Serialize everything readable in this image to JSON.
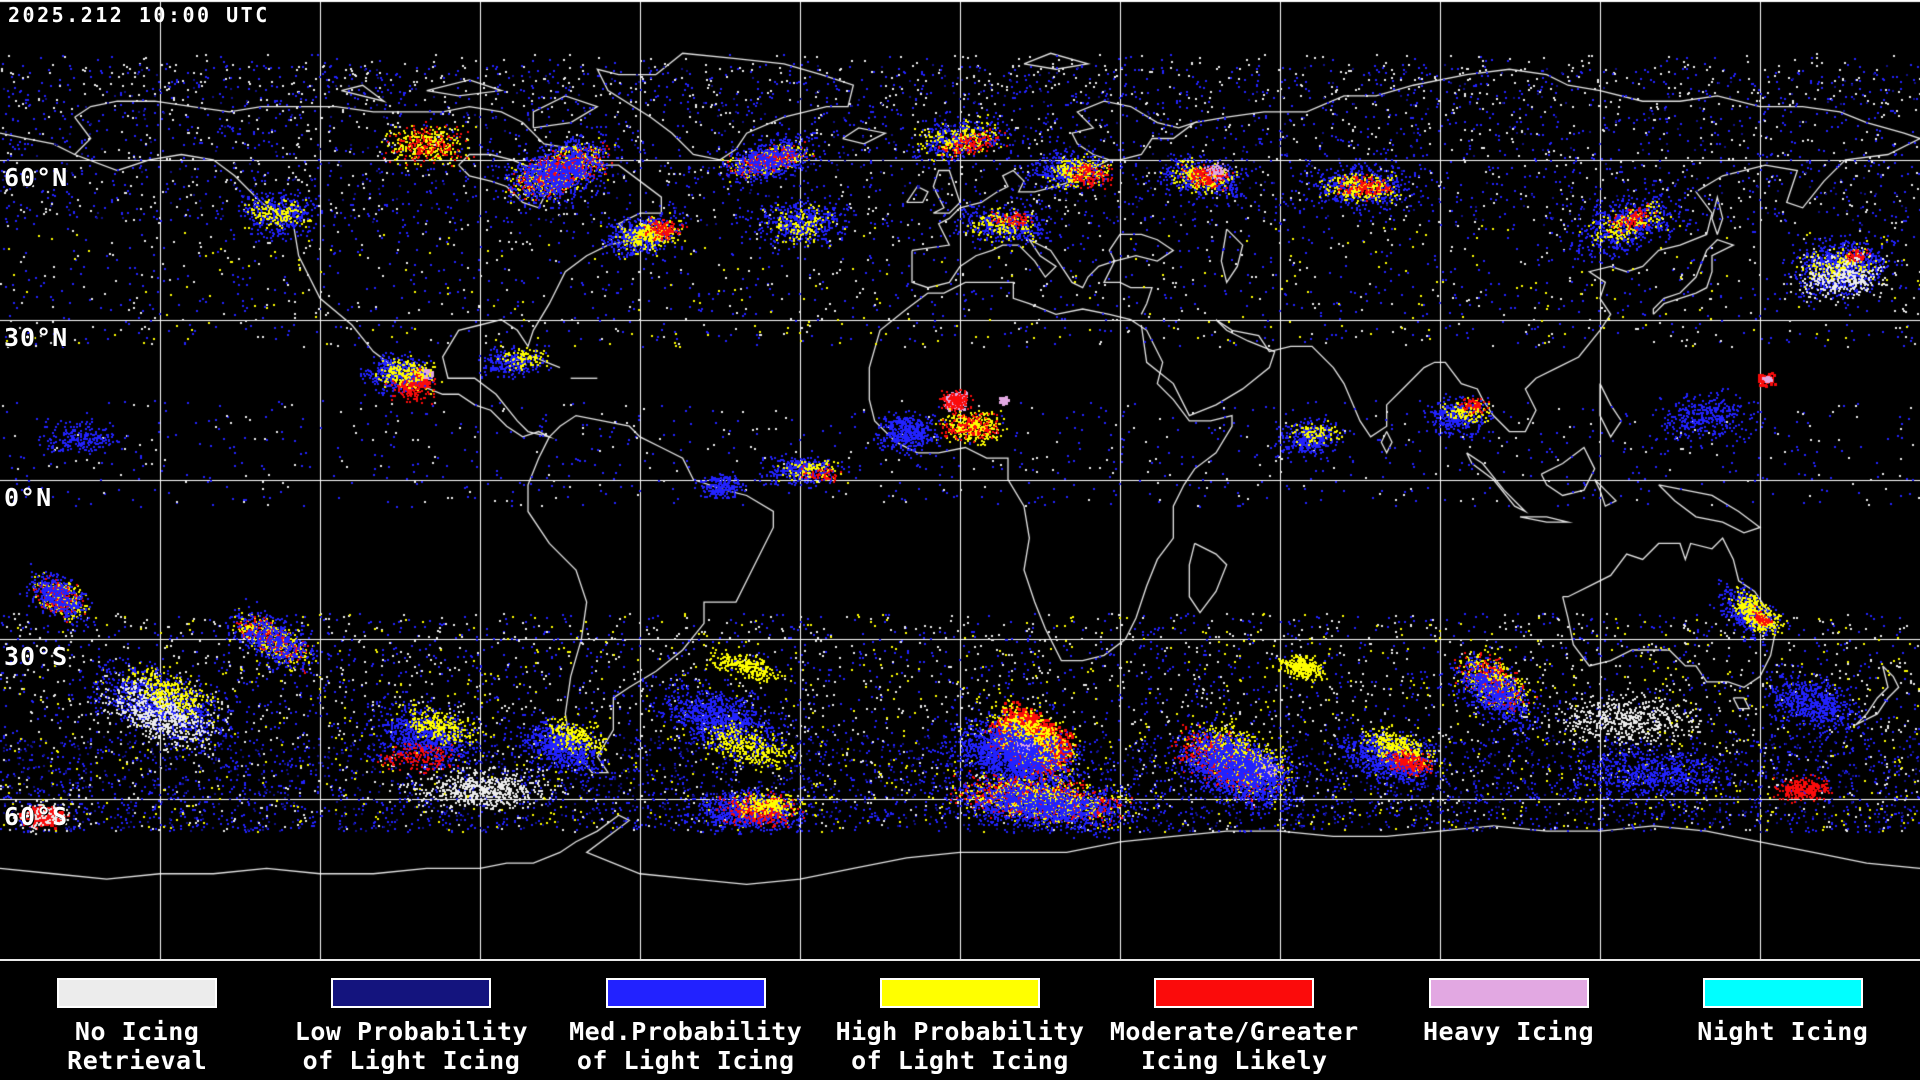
{
  "header": {
    "timestamp": "2025.212 10:00 UTC"
  },
  "map": {
    "background": "#000000",
    "grid_color": "#ffffff",
    "coastline_color": "#ffffff",
    "lon_step_deg": 30,
    "lat_step_deg": 30,
    "lat_labels": [
      {
        "text": "60°N",
        "lat": 60
      },
      {
        "text": "30°N",
        "lat": 30
      },
      {
        "text": "0°N",
        "lat": 0
      },
      {
        "text": "30°S",
        "lat": -30
      },
      {
        "text": "60°S",
        "lat": -60
      }
    ]
  },
  "legend": {
    "items": [
      {
        "key": "no-icing-retrieval",
        "color": "#ececec",
        "line1": "No Icing",
        "line2": "Retrieval"
      },
      {
        "key": "low-prob-light-icing",
        "color": "#14147e",
        "line1": "Low Probability",
        "line2": "of Light Icing"
      },
      {
        "key": "med-prob-light-icing",
        "color": "#2222ff",
        "line1": "Med.Probability",
        "line2": "of Light Icing"
      },
      {
        "key": "high-prob-light-icing",
        "color": "#ffff00",
        "line1": "High Probability",
        "line2": "of Light Icing"
      },
      {
        "key": "moderate-greater-icing",
        "color": "#fb0b0b",
        "line1": "Moderate/Greater",
        "line2": "Icing Likely"
      },
      {
        "key": "heavy-icing",
        "color": "#e2a8e2",
        "line1": "Heavy Icing",
        "line2": ""
      },
      {
        "key": "night-icing",
        "color": "#00ffff",
        "line1": "Night Icing",
        "line2": ""
      }
    ]
  }
}
